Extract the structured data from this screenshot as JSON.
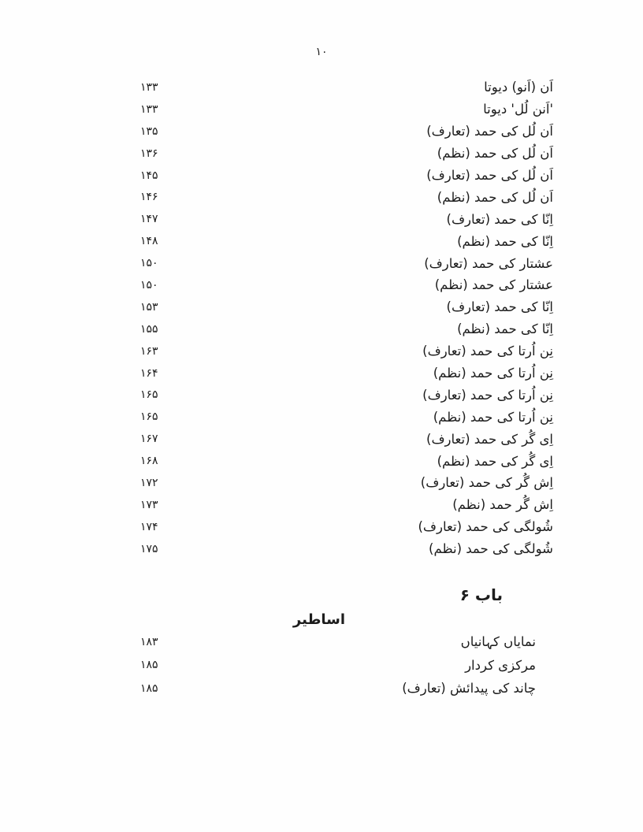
{
  "colors": {
    "ink": "#1d1d1d",
    "paper": "#fefefe"
  },
  "page": {
    "number": "۱۰"
  },
  "toc": {
    "entries": [
      {
        "title": "اَن (اَنو) دیوتا",
        "page": "۱۳۳"
      },
      {
        "title": "'اَنن لُل' دیوتا",
        "page": "۱۳۳"
      },
      {
        "title": "اَن لُل کی حمد (تعارف)",
        "page": "۱۳۵"
      },
      {
        "title": "اَن لُل کی حمد (نظم)",
        "page": "۱۳۶"
      },
      {
        "title": "اَن لُل کی حمد (تعارف)",
        "page": "۱۴۵"
      },
      {
        "title": "اَن لُل کی حمد (نظم)",
        "page": "۱۴۶"
      },
      {
        "title": "اِنّا کی حمد (تعارف)",
        "page": "۱۴۷"
      },
      {
        "title": "اِنّا کی حمد (نظم)",
        "page": "۱۴۸"
      },
      {
        "title": "عشتار کی حمد (تعارف)",
        "page": "۱۵۰"
      },
      {
        "title": "عشتار کی حمد (نظم)",
        "page": "۱۵۰"
      },
      {
        "title": "اِنّا کی حمد (تعارف)",
        "page": "۱۵۳"
      },
      {
        "title": "اِنّا کی حمد (نظم)",
        "page": "۱۵۵"
      },
      {
        "title": "نِن اُرتا کی حمد (تعارف)",
        "page": "۱۶۳"
      },
      {
        "title": "نِن اُرتا کی حمد (نظم)",
        "page": "۱۶۴"
      },
      {
        "title": "نِن اُرتا کی حمد (تعارف)",
        "page": "۱۶۵"
      },
      {
        "title": "نِن اُرتا کی حمد (نظم)",
        "page": "۱۶۵"
      },
      {
        "title": "اِی گُر کی حمد (تعارف)",
        "page": "۱۶۷"
      },
      {
        "title": "اِی گُر کی حمد (نظم)",
        "page": "۱۶۸"
      },
      {
        "title": "اِش گُر کی حمد (تعارف)",
        "page": "۱۷۲"
      },
      {
        "title": "اِش گُر حمد (نظم)",
        "page": "۱۷۳"
      },
      {
        "title": "شُولگی کی حمد (تعارف)",
        "page": "۱۷۴"
      },
      {
        "title": "شُولگی کی حمد (نظم)",
        "page": "۱۷۵"
      }
    ]
  },
  "chapter": {
    "label": "باب ۶"
  },
  "section": {
    "heading": "اساطیر",
    "entries": [
      {
        "title": "نمایاں کہانیاں",
        "page": "۱۸۳"
      },
      {
        "title": "مرکزی کردار",
        "page": "۱۸۵"
      },
      {
        "title": "چاند کی پیدائش (تعارف)",
        "page": "۱۸۵"
      }
    ]
  }
}
